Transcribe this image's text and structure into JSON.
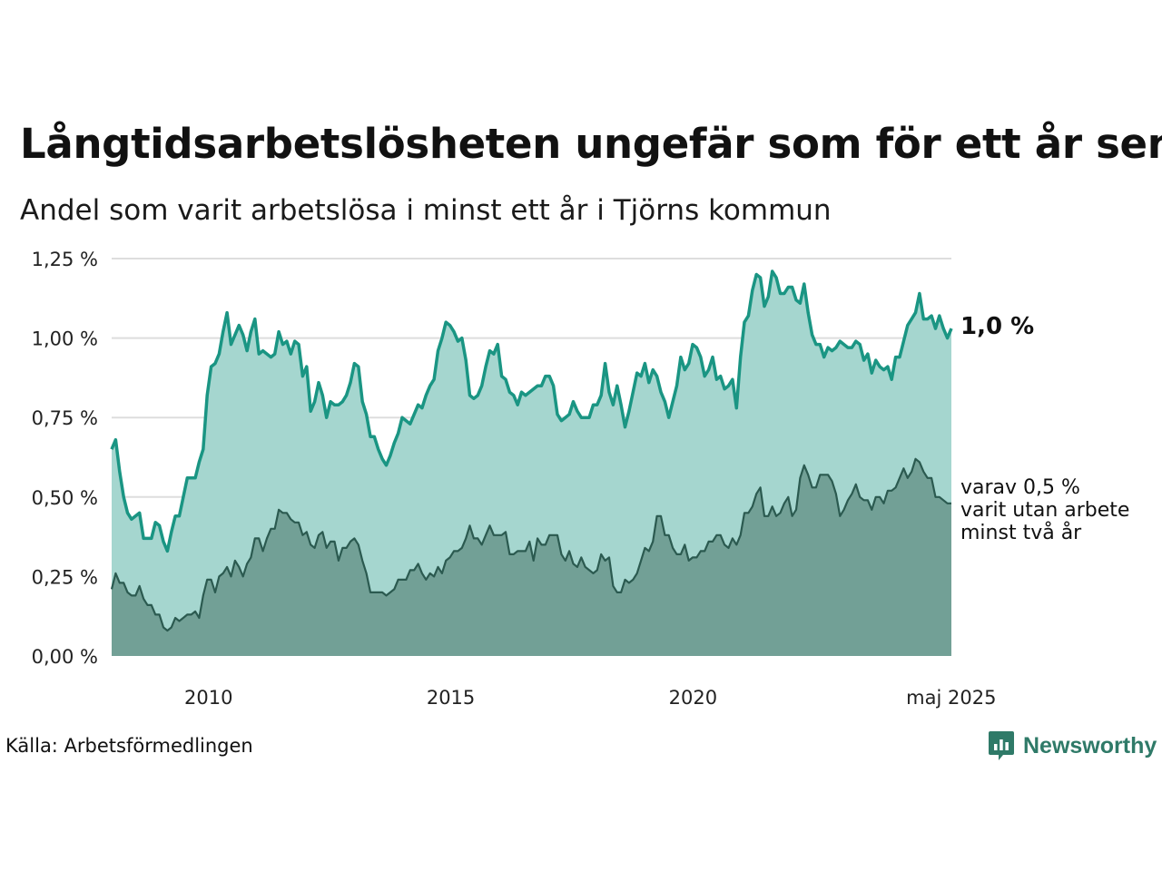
{
  "title": "Långtidsarbetslösheten ungefär som för ett år sen",
  "subtitle": "Andel som varit arbetslösa i minst ett år i Tjörns kommun",
  "source": "Källa: Arbetsförmedlingen",
  "brand": "Newsworthy",
  "colors": {
    "main_line": "#1a9583",
    "main_fill": "#a5d6cf",
    "sub_line": "#2b5a50",
    "sub_fill": "#72a096",
    "grid": "#dddddd"
  },
  "chart_data": {
    "type": "area",
    "x_start": "2008-01",
    "x_end": "2025-05",
    "frequency": "monthly",
    "ylim": [
      0,
      1.25
    ],
    "y_ticks": [
      {
        "value": 1.25,
        "label": "1,25 %"
      },
      {
        "value": 1.0,
        "label": "1,00 %"
      },
      {
        "value": 0.75,
        "label": "0,75 %"
      },
      {
        "value": 0.5,
        "label": "0,50 %"
      },
      {
        "value": 0.25,
        "label": "0,25 %"
      },
      {
        "value": 0.0,
        "label": "0,00 %"
      }
    ],
    "x_ticks": [
      {
        "value": 2010,
        "label": "2010"
      },
      {
        "value": 2015,
        "label": "2015"
      },
      {
        "value": 2020,
        "label": "2020"
      },
      {
        "value": 2025.33,
        "label": "maj 2025"
      }
    ],
    "grid": true,
    "series": [
      {
        "label": "1,0 %",
        "values": [
          0.65,
          0.68,
          0.58,
          0.5,
          0.45,
          0.43,
          0.44,
          0.45,
          0.37,
          0.37,
          0.37,
          0.42,
          0.41,
          0.36,
          0.33,
          0.39,
          0.44,
          0.44,
          0.5,
          0.56,
          0.56,
          0.56,
          0.61,
          0.65,
          0.82,
          0.91,
          0.92,
          0.95,
          1.02,
          1.08,
          0.98,
          1.01,
          1.04,
          1.01,
          0.96,
          1.02,
          1.06,
          0.95,
          0.96,
          0.95,
          0.94,
          0.95,
          1.02,
          0.98,
          0.99,
          0.95,
          0.99,
          0.98,
          0.88,
          0.91,
          0.77,
          0.8,
          0.86,
          0.82,
          0.75,
          0.8,
          0.79,
          0.79,
          0.8,
          0.82,
          0.86,
          0.92,
          0.91,
          0.8,
          0.76,
          0.69,
          0.69,
          0.65,
          0.62,
          0.6,
          0.63,
          0.67,
          0.7,
          0.75,
          0.74,
          0.73,
          0.76,
          0.79,
          0.78,
          0.82,
          0.85,
          0.87,
          0.96,
          1.0,
          1.05,
          1.04,
          1.02,
          0.99,
          1.0,
          0.93,
          0.82,
          0.81,
          0.82,
          0.85,
          0.91,
          0.96,
          0.95,
          0.98,
          0.88,
          0.87,
          0.83,
          0.82,
          0.79,
          0.83,
          0.82,
          0.83,
          0.84,
          0.85,
          0.85,
          0.88,
          0.88,
          0.85,
          0.76,
          0.74,
          0.75,
          0.76,
          0.8,
          0.77,
          0.75,
          0.75,
          0.75,
          0.79,
          0.79,
          0.82,
          0.92,
          0.83,
          0.79,
          0.85,
          0.79,
          0.72,
          0.77,
          0.83,
          0.89,
          0.88,
          0.92,
          0.86,
          0.9,
          0.88,
          0.83,
          0.8,
          0.75,
          0.8,
          0.85,
          0.94,
          0.9,
          0.92,
          0.98,
          0.97,
          0.94,
          0.88,
          0.9,
          0.94,
          0.87,
          0.88,
          0.84,
          0.85,
          0.87,
          0.78,
          0.94,
          1.05,
          1.07,
          1.15,
          1.2,
          1.19,
          1.1,
          1.13,
          1.21,
          1.19,
          1.14,
          1.14,
          1.16,
          1.16,
          1.12,
          1.11,
          1.17,
          1.08,
          1.01,
          0.98,
          0.98,
          0.94,
          0.97,
          0.96,
          0.97,
          0.99,
          0.98,
          0.97,
          0.97,
          0.99,
          0.98,
          0.93,
          0.95,
          0.89,
          0.93,
          0.91,
          0.9,
          0.91,
          0.87,
          0.94,
          0.94,
          0.99,
          1.04,
          1.06,
          1.08,
          1.14,
          1.06,
          1.06,
          1.07,
          1.03,
          1.07,
          1.03,
          1.0,
          1.03
        ]
      },
      {
        "label": "varav 0,5 %\nvarit utan arbete\nminst två år",
        "values": [
          0.21,
          0.26,
          0.23,
          0.23,
          0.2,
          0.19,
          0.19,
          0.22,
          0.18,
          0.16,
          0.16,
          0.13,
          0.13,
          0.09,
          0.08,
          0.09,
          0.12,
          0.11,
          0.12,
          0.13,
          0.13,
          0.14,
          0.12,
          0.19,
          0.24,
          0.24,
          0.2,
          0.25,
          0.26,
          0.28,
          0.25,
          0.3,
          0.28,
          0.25,
          0.29,
          0.31,
          0.37,
          0.37,
          0.33,
          0.37,
          0.4,
          0.4,
          0.46,
          0.45,
          0.45,
          0.43,
          0.42,
          0.42,
          0.38,
          0.39,
          0.35,
          0.34,
          0.38,
          0.39,
          0.34,
          0.36,
          0.36,
          0.3,
          0.34,
          0.34,
          0.36,
          0.37,
          0.35,
          0.3,
          0.26,
          0.2,
          0.2,
          0.2,
          0.2,
          0.19,
          0.2,
          0.21,
          0.24,
          0.24,
          0.24,
          0.27,
          0.27,
          0.29,
          0.26,
          0.24,
          0.26,
          0.25,
          0.28,
          0.26,
          0.3,
          0.31,
          0.33,
          0.33,
          0.34,
          0.37,
          0.41,
          0.37,
          0.37,
          0.35,
          0.38,
          0.41,
          0.38,
          0.38,
          0.38,
          0.39,
          0.32,
          0.32,
          0.33,
          0.33,
          0.33,
          0.36,
          0.3,
          0.37,
          0.35,
          0.35,
          0.38,
          0.38,
          0.38,
          0.32,
          0.3,
          0.33,
          0.29,
          0.28,
          0.31,
          0.28,
          0.27,
          0.26,
          0.27,
          0.32,
          0.3,
          0.31,
          0.22,
          0.2,
          0.2,
          0.24,
          0.23,
          0.24,
          0.26,
          0.3,
          0.34,
          0.33,
          0.36,
          0.44,
          0.44,
          0.38,
          0.38,
          0.34,
          0.32,
          0.32,
          0.35,
          0.3,
          0.31,
          0.31,
          0.33,
          0.33,
          0.36,
          0.36,
          0.38,
          0.38,
          0.35,
          0.34,
          0.37,
          0.35,
          0.38,
          0.45,
          0.45,
          0.47,
          0.51,
          0.53,
          0.44,
          0.44,
          0.47,
          0.44,
          0.45,
          0.48,
          0.5,
          0.44,
          0.46,
          0.56,
          0.6,
          0.57,
          0.53,
          0.53,
          0.57,
          0.57,
          0.57,
          0.55,
          0.51,
          0.44,
          0.46,
          0.49,
          0.51,
          0.54,
          0.5,
          0.49,
          0.49,
          0.46,
          0.5,
          0.5,
          0.48,
          0.52,
          0.52,
          0.53,
          0.56,
          0.59,
          0.56,
          0.58,
          0.62,
          0.61,
          0.58,
          0.56,
          0.56,
          0.5,
          0.5,
          0.49,
          0.48,
          0.48
        ]
      }
    ]
  }
}
